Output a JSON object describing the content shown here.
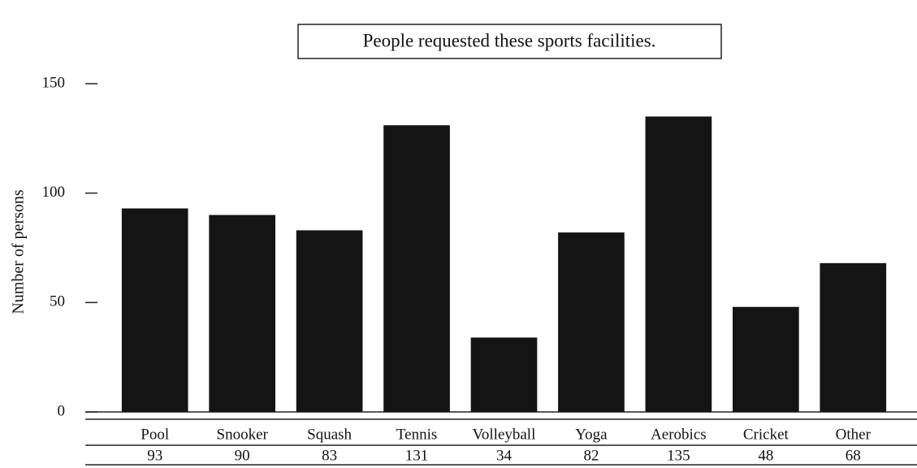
{
  "chart_data": {
    "type": "bar",
    "title": "People requested these sports facilities.",
    "ylabel": "Number of persons",
    "categories": [
      "Pool",
      "Snooker",
      "Squash",
      "Tennis",
      "Volleyball",
      "Yoga",
      "Aerobics",
      "Cricket",
      "Other"
    ],
    "values": [
      93,
      90,
      83,
      131,
      34,
      82,
      135,
      48,
      68
    ],
    "color": "#141414",
    "ylim": [
      0,
      150
    ],
    "yticks": [
      0,
      50,
      100,
      150
    ],
    "grid": false
  }
}
